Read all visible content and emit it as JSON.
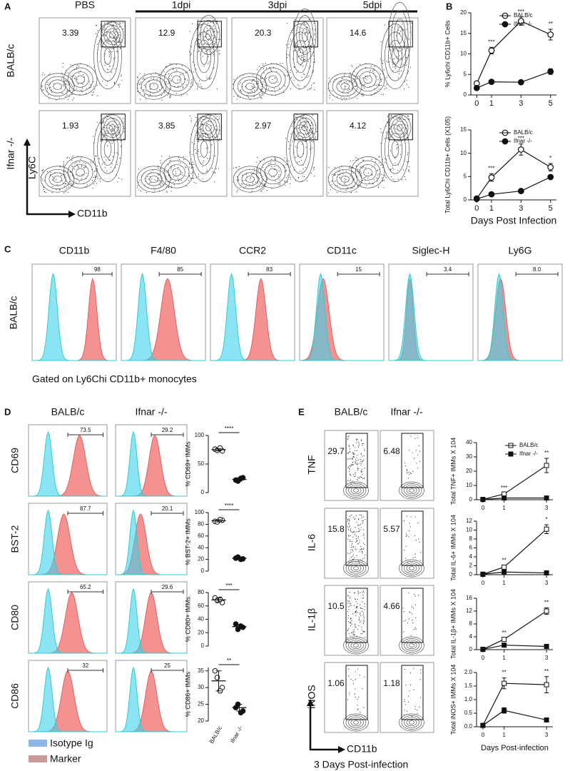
{
  "panel_labels": [
    "A",
    "B",
    "C",
    "D",
    "E"
  ],
  "panel_a": {
    "columns": [
      "PBS",
      "1dpi",
      "3dpi",
      "5dpi"
    ],
    "rows": [
      "BALB/c",
      "Ifnar -/-"
    ],
    "gates": [
      [
        "3.39",
        "12.9",
        "20.3",
        "14.6"
      ],
      [
        "1.93",
        "3.85",
        "2.97",
        "4.12"
      ]
    ],
    "y_axis": "Ly6C",
    "x_axis": "CD11b"
  },
  "panel_c": {
    "markers": [
      "CD11b",
      "F4/80",
      "CCR2",
      "CD11c",
      "Siglec-H",
      "Ly6G"
    ],
    "row": "BALB/c",
    "gates": [
      "98",
      "85",
      "83",
      "15",
      "3.4",
      "8.0"
    ],
    "caption": "Gated on Ly6Chi CD11b+ monocytes"
  },
  "panel_d": {
    "columns": [
      "BALB/c",
      "Ifnar -/-"
    ],
    "rows": [
      "CD69",
      "BST-2",
      "CD80",
      "CD86"
    ],
    "gates": [
      [
        "73.5",
        "29.2"
      ],
      [
        "87.7",
        "20.1"
      ],
      [
        "65.2",
        "29.6"
      ],
      [
        "32",
        "25"
      ]
    ],
    "legend": [
      "Isotype Ig",
      "Marker"
    ]
  },
  "panel_e": {
    "columns": [
      "BALB/c",
      "Ifnar -/-"
    ],
    "rows": [
      "TNF",
      "IL-6",
      "IL-1β",
      "iNOS"
    ],
    "gates": [
      [
        "29.7",
        "6.48"
      ],
      [
        "15.8",
        "5.57"
      ],
      [
        "10.5",
        "4.66"
      ],
      [
        "1.06",
        "1.18"
      ]
    ],
    "x_axis": "CD11b",
    "caption": "3 Days Post-infection"
  },
  "chart_data": [
    {
      "type": "line",
      "y_label": "% Ly6chi CD11b+ Cells",
      "x": [
        0,
        1,
        3,
        5
      ],
      "xlim": [
        -0.4,
        5.4
      ],
      "xticks": [
        0,
        1,
        3,
        5
      ],
      "ylim": [
        0,
        20
      ],
      "yticks": [
        0,
        5,
        10,
        15,
        20
      ],
      "annotations": [
        null,
        "***",
        "***",
        "**"
      ],
      "series": [
        {
          "name": "BALB/c",
          "color": "#111111",
          "marker": "circle",
          "filled": false,
          "values": [
            2.8,
            10.8,
            18,
            14.7
          ],
          "errors": [
            0.5,
            0.8,
            1,
            1.3
          ]
        },
        {
          "name": "Ifnar -/-",
          "color": "#111111",
          "marker": "circle",
          "filled": true,
          "values": [
            1.7,
            3.2,
            3.1,
            5.7
          ],
          "errors": [
            0.3,
            0.3,
            0.3,
            0.7
          ]
        }
      ]
    },
    {
      "type": "line",
      "y_label": "Total Ly6Chi CD11b+ Cells (X105)",
      "x_label": "Days Post Infection",
      "x": [
        0,
        1,
        3,
        5
      ],
      "xlim": [
        -0.4,
        5.4
      ],
      "xticks": [
        0,
        1,
        3,
        5
      ],
      "ylim": [
        0,
        15
      ],
      "yticks": [
        0,
        5,
        10,
        15
      ],
      "annotations": [
        null,
        "***",
        "***",
        "*"
      ],
      "series": [
        {
          "name": "BALB/c",
          "color": "#111111",
          "marker": "circle",
          "filled": false,
          "values": [
            0.3,
            4.8,
            10.8,
            7
          ],
          "errors": [
            0.2,
            0.8,
            1.2,
            0.8
          ]
        },
        {
          "name": "Ifnar -/-",
          "color": "#111111",
          "marker": "circle",
          "filled": true,
          "values": [
            0.2,
            1.2,
            1.9,
            4.9
          ],
          "errors": [
            0.1,
            0.2,
            0.2,
            0.4
          ]
        }
      ]
    },
    {
      "type": "dot",
      "y_label": "% CD69+ IMMs",
      "categories": [
        null,
        null
      ],
      "ylim": [
        0,
        100
      ],
      "yticks": [
        0,
        50,
        100
      ],
      "annotation": "****",
      "groups": [
        {
          "filled": false,
          "values": [
            76,
            73,
            74,
            78
          ],
          "mean": 75,
          "sd": 2
        },
        {
          "filled": true,
          "values": [
            22,
            26,
            20,
            25
          ],
          "mean": 23,
          "sd": 3
        }
      ]
    },
    {
      "type": "dot",
      "y_label": "% BST-2+ IMMs",
      "categories": [
        null,
        null
      ],
      "ylim": [
        0,
        100
      ],
      "yticks": [
        0,
        20,
        40,
        60,
        80,
        100
      ],
      "annotation": "****",
      "groups": [
        {
          "filled": false,
          "values": [
            85,
            87,
            84,
            88
          ],
          "mean": 86,
          "sd": 2
        },
        {
          "filled": true,
          "values": [
            22,
            21,
            24,
            20
          ],
          "mean": 22,
          "sd": 2
        }
      ]
    },
    {
      "type": "dot",
      "y_label": "% CD80+ IMMs",
      "categories": [
        null,
        null
      ],
      "ylim": [
        0,
        80
      ],
      "yticks": [
        0,
        20,
        40,
        60,
        80
      ],
      "annotation": "***",
      "groups": [
        {
          "filled": false,
          "values": [
            72,
            65,
            68,
            70
          ],
          "mean": 69,
          "sd": 3
        },
        {
          "filled": true,
          "values": [
            33,
            28,
            25,
            30
          ],
          "mean": 29,
          "sd": 3
        }
      ]
    },
    {
      "type": "dot",
      "y_label": "% CD86+ IMMs",
      "categories": [
        "BALB/c",
        "Ifnar -/-"
      ],
      "ylim": [
        20,
        36
      ],
      "yticks": [
        20,
        25,
        30,
        35
      ],
      "annotation": "**",
      "groups": [
        {
          "filled": false,
          "values": [
            35,
            30,
            33,
            29
          ],
          "mean": 32,
          "sd": 3
        },
        {
          "filled": true,
          "values": [
            24,
            23,
            25,
            22.5
          ],
          "mean": 24,
          "sd": 1
        }
      ]
    },
    {
      "type": "line",
      "y_label": "Total TNF+ IMMs X 104",
      "x": [
        0,
        1,
        3
      ],
      "xlim": [
        -0.3,
        3.3
      ],
      "xticks": [
        0,
        1,
        3
      ],
      "ylim": [
        0,
        40
      ],
      "yticks": [
        0,
        10,
        20,
        30,
        40
      ],
      "annotations": [
        null,
        "***",
        "**"
      ],
      "series": [
        {
          "name": "BALB/c",
          "color": "#111111",
          "marker": "square",
          "filled": false,
          "values": [
            0.2,
            4,
            24
          ],
          "errors": [
            0.1,
            0.5,
            5
          ]
        },
        {
          "name": "Ifnar -/-",
          "color": "#111111",
          "marker": "square",
          "filled": true,
          "values": [
            0.2,
            1.2,
            1.2
          ],
          "errors": [
            0.1,
            0.2,
            0.2
          ]
        }
      ]
    },
    {
      "type": "line",
      "y_label": "Total IL-6+ IMMs X 104",
      "x": [
        0,
        1,
        3
      ],
      "xlim": [
        -0.3,
        3.3
      ],
      "xticks": [
        0,
        1,
        3
      ],
      "ylim": [
        0,
        12
      ],
      "yticks": [
        0,
        2,
        4,
        6,
        8,
        10,
        12
      ],
      "annotations": [
        null,
        "**",
        "*"
      ],
      "series": [
        {
          "color": "#111111",
          "marker": "square",
          "filled": false,
          "values": [
            0.1,
            1.7,
            10.2
          ],
          "errors": [
            0.05,
            0.3,
            1
          ]
        },
        {
          "color": "#111111",
          "marker": "square",
          "filled": true,
          "values": [
            0.1,
            0.6,
            0.4
          ],
          "errors": [
            0.05,
            0.1,
            0.1
          ]
        }
      ]
    },
    {
      "type": "line",
      "y_label": "Total IL-1β+ IMMs X 104",
      "x": [
        0,
        1,
        3
      ],
      "xlim": [
        -0.3,
        3.3
      ],
      "xticks": [
        0,
        1,
        3
      ],
      "ylim": [
        0,
        16
      ],
      "yticks": [
        0,
        4,
        8,
        12,
        16
      ],
      "annotations": [
        null,
        "**",
        "**"
      ],
      "series": [
        {
          "color": "#111111",
          "marker": "square",
          "filled": false,
          "values": [
            0.1,
            3.2,
            12
          ],
          "errors": [
            0.05,
            0.4,
            1
          ]
        },
        {
          "color": "#111111",
          "marker": "square",
          "filled": true,
          "values": [
            0.1,
            1.4,
            1
          ],
          "errors": [
            0.05,
            0.2,
            0.2
          ]
        }
      ]
    },
    {
      "type": "line",
      "y_label": "Total iNOS+ IMMs X 104",
      "x_label": "Days Post-infection",
      "x": [
        0,
        1,
        3
      ],
      "xlim": [
        -0.3,
        3.3
      ],
      "xticks": [
        0,
        1,
        3
      ],
      "ylim": [
        0,
        2
      ],
      "yticks": [
        {
          "value": 0,
          "label": "0.0"
        },
        0.5,
        {
          "value": 1,
          "label": "1.0"
        },
        1.5,
        {
          "value": 2,
          "label": "2.0"
        }
      ],
      "annotations": [
        null,
        "**",
        "**"
      ],
      "series": [
        {
          "color": "#111111",
          "marker": "square",
          "filled": false,
          "values": [
            0.05,
            1.6,
            1.55
          ],
          "errors": [
            0.05,
            0.2,
            0.3
          ]
        },
        {
          "color": "#111111",
          "marker": "square",
          "filled": true,
          "values": [
            0.05,
            0.6,
            0.25
          ],
          "errors": [
            0.03,
            0.1,
            0.05
          ]
        }
      ]
    }
  ]
}
